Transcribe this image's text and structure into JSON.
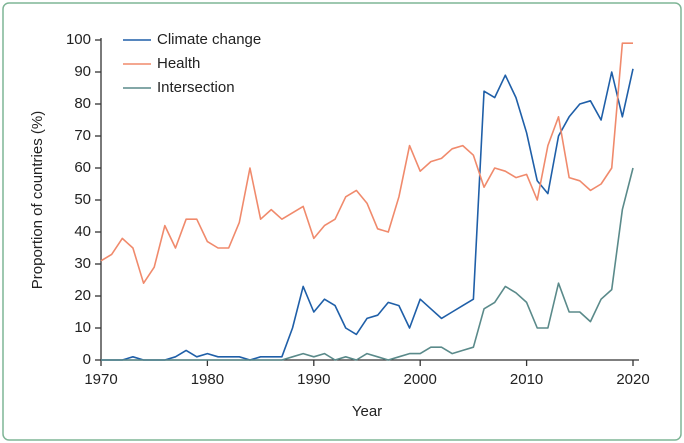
{
  "chart_data": {
    "type": "line",
    "xlabel": "Year",
    "ylabel": "Proportion of countries (%)",
    "x": [
      1970,
      1971,
      1972,
      1973,
      1974,
      1975,
      1976,
      1977,
      1978,
      1979,
      1980,
      1981,
      1982,
      1983,
      1984,
      1985,
      1986,
      1987,
      1988,
      1989,
      1990,
      1991,
      1992,
      1993,
      1994,
      1995,
      1996,
      1997,
      1998,
      1999,
      2000,
      2001,
      2002,
      2003,
      2004,
      2005,
      2006,
      2007,
      2008,
      2009,
      2010,
      2011,
      2012,
      2013,
      2014,
      2015,
      2016,
      2017,
      2018,
      2019,
      2020
    ],
    "series": [
      {
        "name": "Climate change",
        "color": "#1f5fa8",
        "values": [
          0,
          0,
          0,
          1,
          0,
          0,
          0,
          1,
          3,
          1,
          2,
          1,
          1,
          1,
          0,
          1,
          1,
          1,
          10,
          23,
          15,
          19,
          17,
          10,
          8,
          13,
          14,
          18,
          17,
          10,
          19,
          16,
          13,
          15,
          17,
          19,
          84,
          82,
          89,
          82,
          71,
          56,
          52,
          70,
          76,
          80,
          81,
          75,
          90,
          76,
          91
        ]
      },
      {
        "name": "Health",
        "color": "#f08a6c",
        "values": [
          31,
          33,
          38,
          35,
          24,
          29,
          42,
          35,
          44,
          44,
          37,
          35,
          35,
          43,
          60,
          44,
          47,
          44,
          46,
          48,
          38,
          42,
          44,
          51,
          53,
          49,
          41,
          40,
          51,
          67,
          59,
          62,
          63,
          66,
          67,
          64,
          54,
          60,
          59,
          57,
          58,
          50,
          67,
          76,
          57,
          56,
          53,
          55,
          60,
          99,
          99
        ]
      },
      {
        "name": "Intersection",
        "color": "#5a8a8a",
        "values": [
          0,
          0,
          0,
          0,
          0,
          0,
          0,
          0,
          0,
          0,
          0,
          0,
          0,
          0,
          0,
          0,
          0,
          0,
          1,
          2,
          1,
          2,
          0,
          1,
          0,
          2,
          1,
          0,
          1,
          2,
          2,
          4,
          4,
          2,
          3,
          4,
          16,
          18,
          23,
          21,
          18,
          10,
          10,
          24,
          15,
          15,
          12,
          19,
          22,
          47,
          60
        ]
      }
    ],
    "xlim": [
      1970,
      2020
    ],
    "xticks": [
      1970,
      1980,
      1990,
      2000,
      2010,
      2020
    ],
    "ylim": [
      0,
      100
    ],
    "yticks": [
      0,
      10,
      20,
      30,
      40,
      50,
      60,
      70,
      80,
      90,
      100
    ],
    "grid": false,
    "legend": "upper left"
  }
}
